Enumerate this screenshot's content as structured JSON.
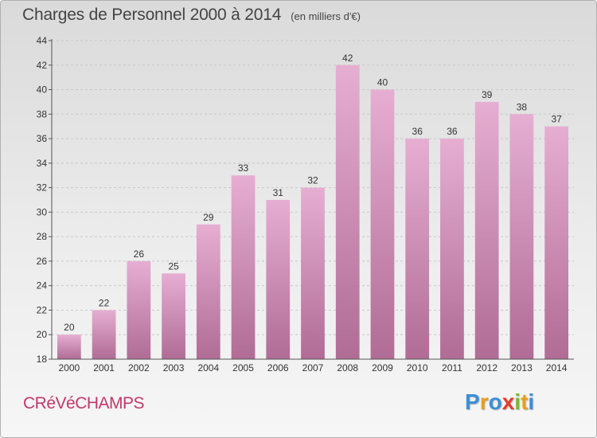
{
  "title": "Charges de Personnel 2000 à 2014",
  "subtitle": "(en milliers d'€)",
  "city": "CRéVéCHAMPS",
  "logo": {
    "letters": [
      "P",
      "r",
      "o",
      "x",
      "i",
      "t",
      "i"
    ],
    "colors": [
      "#3b8fd8",
      "#e8a020",
      "#3b8fd8",
      "#e23c2b",
      "#7ab83a",
      "#e8a020",
      "#3b8fd8"
    ]
  },
  "colors": {
    "bar_top": "#e6aed2",
    "bar_bottom": "#b06c95",
    "axis": "#555555",
    "grid": "#c8c8c8"
  },
  "chart_data": {
    "type": "bar",
    "title": "Charges de Personnel 2000 à 2014",
    "subtitle": "(en milliers d'€)",
    "categories": [
      "2000",
      "2001",
      "2002",
      "2003",
      "2004",
      "2005",
      "2006",
      "2007",
      "2008",
      "2009",
      "2010",
      "2011",
      "2012",
      "2013",
      "2014"
    ],
    "values": [
      20,
      22,
      26,
      25,
      29,
      33,
      31,
      32,
      42,
      40,
      36,
      36,
      39,
      38,
      37
    ],
    "ylim": [
      18,
      44
    ],
    "yticks": [
      18,
      20,
      22,
      24,
      26,
      28,
      30,
      32,
      34,
      36,
      38,
      40,
      42,
      44
    ],
    "grid": true,
    "xlabel": "",
    "ylabel": ""
  }
}
